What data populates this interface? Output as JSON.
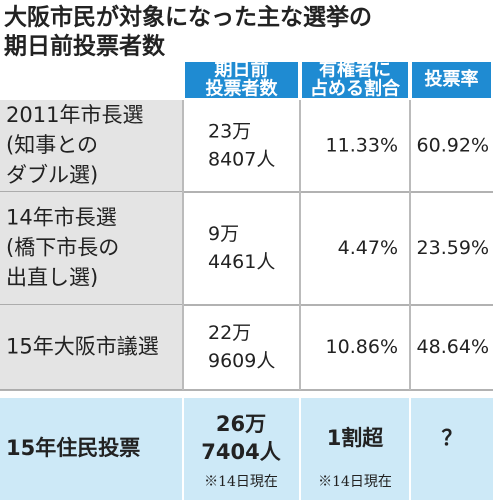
{
  "header": {
    "title": [
      "大阪市民が対象になった主な選挙の",
      "期日前投票者数"
    ]
  },
  "table": {
    "columns": [
      [
        "期日前",
        "投票者数"
      ],
      [
        "有権者に",
        "占める割合"
      ],
      [
        "投票率"
      ]
    ],
    "rows": [
      {
        "label": [
          "2011年市長選",
          "(知事との",
          "ダブル選)"
        ],
        "voters": [
          "23万",
          "8407人"
        ],
        "share": "11.33%",
        "turnout": "60.92%"
      },
      {
        "label": [
          "14年市長選",
          "(橋下市長の",
          "出直し選)"
        ],
        "voters": [
          "9万",
          "4461人"
        ],
        "share": "4.47%",
        "turnout": "23.59%"
      },
      {
        "label": [
          "15年大阪市議選"
        ],
        "voters": [
          "22万",
          "9609人"
        ],
        "share": "10.86%",
        "turnout": "48.64%"
      },
      {
        "label": [
          "15年住民投票"
        ],
        "voters": [
          "26万",
          "7404人"
        ],
        "voters_note": "※14日現在",
        "share": "1割超",
        "share_note": "※14日現在",
        "turnout": "？"
      }
    ]
  }
}
